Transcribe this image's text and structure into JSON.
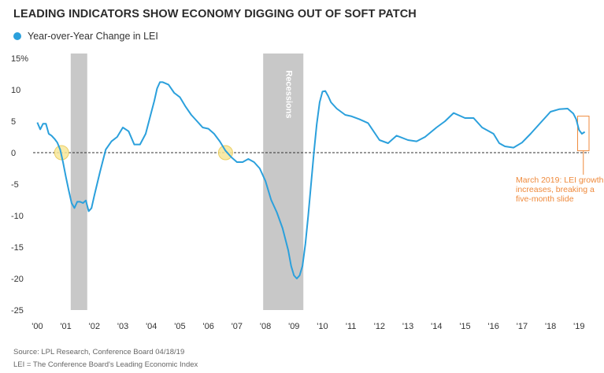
{
  "title": "LEADING INDICATORS SHOW ECONOMY DIGGING OUT OF SOFT PATCH",
  "colors": {
    "series": "#2ba0dc",
    "recession": "#c8c8c8",
    "highlight_fill": "#f7e79a",
    "highlight_stroke": "#e8c64a",
    "annotation": "#ef8a3c",
    "zero_line": "#333333"
  },
  "legend": {
    "label": "Year-over-Year Change in LEI",
    "icon": "circle-marker-icon"
  },
  "footer": {
    "source": "Source: LPL Research, Conference Board  04/18/19",
    "definition": "LEI = The Conference Board's Leading Economic Index"
  },
  "annotation": {
    "lines": [
      "March 2019: LEI growth",
      "increases, breaking a",
      "five-month slide"
    ]
  },
  "chart_data": {
    "type": "line",
    "title": "LEADING INDICATORS SHOW ECONOMY DIGGING OUT OF SOFT PATCH",
    "xlabel": "",
    "ylabel": "",
    "xlim": [
      1999.85,
      2019.35
    ],
    "ylim": [
      -25,
      15
    ],
    "y_ticks": [
      {
        "value": 15,
        "label": "15%"
      },
      {
        "value": 10,
        "label": "10"
      },
      {
        "value": 5,
        "label": "5"
      },
      {
        "value": 0,
        "label": "0"
      },
      {
        "value": -5,
        "label": "-5"
      },
      {
        "value": -10,
        "label": "-10"
      },
      {
        "value": -15,
        "label": "-15"
      },
      {
        "value": -20,
        "label": "-20"
      },
      {
        "value": -25,
        "label": "-25"
      }
    ],
    "x_ticks": [
      {
        "value": 2000,
        "label": "'00"
      },
      {
        "value": 2001,
        "label": "'01"
      },
      {
        "value": 2002,
        "label": "'02"
      },
      {
        "value": 2003,
        "label": "'03"
      },
      {
        "value": 2004,
        "label": "'04"
      },
      {
        "value": 2005,
        "label": "'05"
      },
      {
        "value": 2006,
        "label": "'06"
      },
      {
        "value": 2007,
        "label": "'07"
      },
      {
        "value": 2008,
        "label": "'08"
      },
      {
        "value": 2009,
        "label": "'09"
      },
      {
        "value": 2010,
        "label": "'10"
      },
      {
        "value": 2011,
        "label": "'11"
      },
      {
        "value": 2012,
        "label": "'12"
      },
      {
        "value": 2013,
        "label": "'13"
      },
      {
        "value": 2014,
        "label": "'14"
      },
      {
        "value": 2015,
        "label": "'15"
      },
      {
        "value": 2016,
        "label": "'16"
      },
      {
        "value": 2017,
        "label": "'17"
      },
      {
        "value": 2018,
        "label": "'18"
      },
      {
        "value": 2019,
        "label": "'19"
      }
    ],
    "recessions": [
      {
        "start": 2001.17,
        "end": 2001.75,
        "label": ""
      },
      {
        "start": 2007.92,
        "end": 2009.33,
        "label": "Recessions"
      }
    ],
    "highlights": [
      {
        "x": 2000.85,
        "y": 0
      },
      {
        "x": 2006.6,
        "y": 0
      }
    ],
    "annotation_box": {
      "x0": 2018.95,
      "x1": 2019.35,
      "y0": 0.3,
      "y1": 5.8
    },
    "grid": false,
    "zero_line": "dashed",
    "legend_position": "top-left",
    "series": [
      {
        "name": "Year-over-Year Change in LEI",
        "x": [
          2000.0,
          2000.1,
          2000.2,
          2000.3,
          2000.4,
          2000.5,
          2000.6,
          2000.7,
          2000.8,
          2000.9,
          2001.0,
          2001.1,
          2001.2,
          2001.3,
          2001.4,
          2001.5,
          2001.6,
          2001.7,
          2001.8,
          2001.9,
          2002.0,
          2002.2,
          2002.4,
          2002.6,
          2002.8,
          2003.0,
          2003.2,
          2003.4,
          2003.6,
          2003.8,
          2004.0,
          2004.1,
          2004.2,
          2004.3,
          2004.4,
          2004.6,
          2004.8,
          2005.0,
          2005.2,
          2005.4,
          2005.6,
          2005.8,
          2006.0,
          2006.2,
          2006.4,
          2006.6,
          2006.8,
          2007.0,
          2007.2,
          2007.4,
          2007.6,
          2007.8,
          2008.0,
          2008.2,
          2008.4,
          2008.6,
          2008.8,
          2008.9,
          2009.0,
          2009.1,
          2009.2,
          2009.3,
          2009.4,
          2009.5,
          2009.6,
          2009.7,
          2009.8,
          2009.9,
          2010.0,
          2010.1,
          2010.2,
          2010.3,
          2010.5,
          2010.8,
          2011.0,
          2011.3,
          2011.6,
          2012.0,
          2012.3,
          2012.6,
          2013.0,
          2013.3,
          2013.6,
          2014.0,
          2014.3,
          2014.6,
          2015.0,
          2015.3,
          2015.6,
          2016.0,
          2016.2,
          2016.4,
          2016.7,
          2017.0,
          2017.3,
          2017.6,
          2018.0,
          2018.3,
          2018.6,
          2018.8,
          2018.9,
          2019.0,
          2019.1,
          2019.2
        ],
        "values": [
          4.8,
          3.7,
          4.6,
          4.6,
          3.0,
          2.7,
          2.2,
          1.6,
          0.5,
          -1.5,
          -3.8,
          -6.0,
          -8.0,
          -8.8,
          -7.8,
          -7.8,
          -8.0,
          -7.6,
          -9.3,
          -8.8,
          -6.8,
          -3.0,
          0.5,
          1.8,
          2.5,
          4.0,
          3.4,
          1.3,
          1.3,
          3.0,
          6.5,
          8.2,
          10.2,
          11.2,
          11.2,
          10.8,
          9.5,
          8.8,
          7.3,
          6.0,
          5.0,
          4.0,
          3.8,
          3.0,
          1.8,
          0.3,
          -0.7,
          -1.5,
          -1.5,
          -1.0,
          -1.5,
          -2.5,
          -4.5,
          -7.5,
          -9.5,
          -12.0,
          -15.5,
          -18.0,
          -19.5,
          -20.0,
          -19.5,
          -18.0,
          -14.5,
          -10.0,
          -5.0,
          0.0,
          4.5,
          8.0,
          9.7,
          9.8,
          9.0,
          8.0,
          7.0,
          6.0,
          5.8,
          5.3,
          4.7,
          2.0,
          1.5,
          2.7,
          2.0,
          1.8,
          2.5,
          4.0,
          5.0,
          6.3,
          5.5,
          5.5,
          4.0,
          3.0,
          1.5,
          1.0,
          0.8,
          1.6,
          3.0,
          4.5,
          6.5,
          6.9,
          7.0,
          6.2,
          5.3,
          3.6,
          3.0,
          3.3
        ]
      }
    ]
  }
}
